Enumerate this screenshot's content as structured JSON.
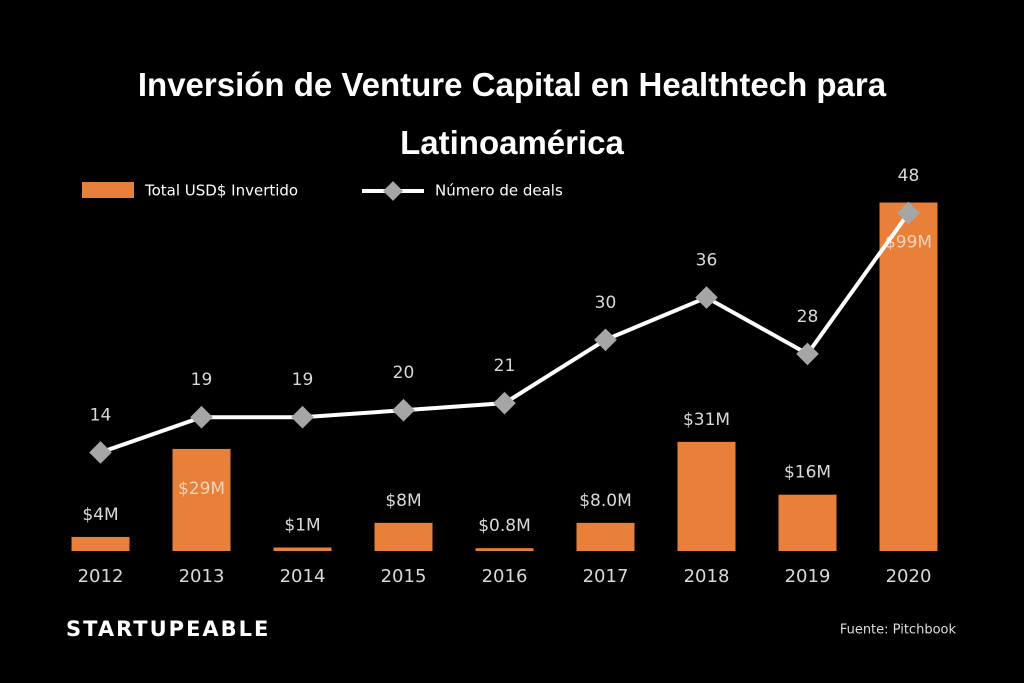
{
  "chart_data": {
    "type": "bar-line",
    "title": "Inversión de Venture Capital en Healthtech para Latinoamérica",
    "categories": [
      "2012",
      "2013",
      "2014",
      "2015",
      "2016",
      "2017",
      "2018",
      "2019",
      "2020"
    ],
    "series": [
      {
        "name": "Total USD$ Invertido",
        "type": "bar",
        "color": "#e8803a",
        "values": [
          4,
          29,
          1,
          8,
          0.8,
          8.0,
          31,
          16,
          99
        ],
        "value_labels": [
          "$4M",
          "$29M",
          "$1M",
          "$8M",
          "$0.8M",
          "$8.0M",
          "$31M",
          "$16M",
          "$99M"
        ]
      },
      {
        "name": "Número de deals",
        "type": "line",
        "axis": "y2",
        "color": "#ffffff",
        "marker_color": "#a6a6a6",
        "values": [
          14,
          19,
          19,
          20,
          21,
          30,
          36,
          28,
          48
        ]
      }
    ],
    "ylim": [
      0,
      100
    ],
    "y2lim": [
      0,
      50
    ],
    "grid": false,
    "legend": "top-left"
  },
  "footer": {
    "brand": "STARTUPEABLE",
    "source": "Fuente: Pitchbook"
  }
}
